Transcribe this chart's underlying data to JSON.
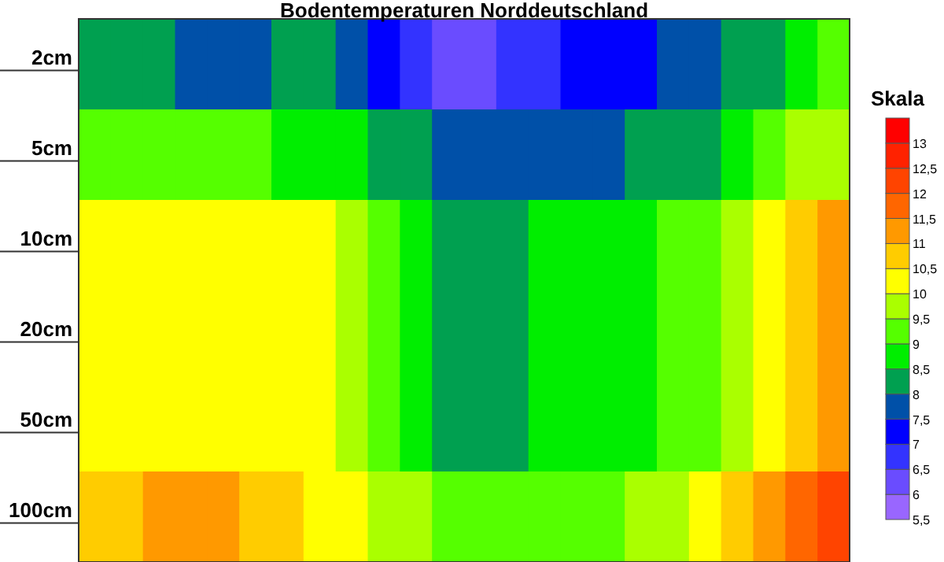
{
  "chart_data": {
    "type": "heatmap",
    "title": "Bodentemperaturen Norddeutschland",
    "clabel": "Skala",
    "categories": [
      null,
      null,
      null,
      null,
      null,
      null,
      null,
      null,
      null,
      null,
      null,
      null,
      null,
      null,
      null,
      null,
      null,
      null,
      null,
      null,
      null,
      null,
      null,
      null
    ],
    "y_categories": [
      "2cm",
      "5cm",
      "10cm",
      "20cm",
      "50cm",
      "100cm"
    ],
    "cells": [
      [
        8.25,
        8.25,
        8.25,
        7.75,
        7.75,
        7.75,
        8.25,
        8.25,
        7.75,
        7.25,
        6.75,
        6.25,
        6.25,
        6.75,
        6.75,
        7.25,
        7.25,
        7.25,
        7.75,
        7.75,
        8.25,
        8.25,
        8.75,
        9.25
      ],
      [
        9.25,
        9.25,
        9.25,
        9.25,
        9.25,
        9.25,
        8.75,
        8.75,
        8.75,
        8.25,
        8.25,
        7.75,
        7.75,
        7.75,
        7.75,
        7.75,
        7.75,
        8.25,
        8.25,
        8.25,
        8.75,
        9.25,
        9.75,
        9.75
      ],
      [
        10.25,
        10.25,
        10.25,
        10.25,
        10.25,
        10.25,
        10.25,
        10.25,
        9.75,
        9.25,
        8.75,
        8.25,
        8.25,
        8.25,
        8.75,
        8.75,
        8.75,
        8.75,
        9.25,
        9.25,
        9.75,
        10.25,
        10.75,
        11.25
      ],
      [
        10.25,
        10.25,
        10.25,
        10.25,
        10.25,
        10.25,
        10.25,
        10.25,
        9.75,
        9.25,
        8.75,
        8.25,
        8.25,
        8.25,
        8.75,
        8.75,
        8.75,
        8.75,
        9.25,
        9.25,
        9.75,
        10.25,
        10.75,
        11.25
      ],
      [
        10.25,
        10.25,
        10.25,
        10.25,
        10.25,
        10.25,
        10.25,
        10.25,
        9.75,
        9.25,
        8.75,
        8.25,
        8.25,
        8.25,
        8.75,
        8.75,
        8.75,
        8.75,
        9.25,
        9.25,
        9.75,
        10.25,
        10.75,
        11.25
      ],
      [
        10.75,
        10.75,
        11.25,
        11.25,
        11.25,
        10.75,
        10.75,
        10.25,
        10.25,
        9.75,
        9.75,
        9.25,
        9.25,
        9.25,
        9.25,
        9.25,
        9.25,
        9.75,
        9.75,
        10.25,
        10.75,
        11.25,
        11.75,
        12.25
      ]
    ],
    "clim": [
      5.5,
      13.5
    ],
    "cticks": [
      {
        "value": 5.5,
        "label": "5,5"
      },
      6,
      {
        "value": 6.5,
        "label": "6,5"
      },
      7,
      {
        "value": 7.5,
        "label": "7,5"
      },
      8,
      {
        "value": 8.5,
        "label": "8,5"
      },
      9,
      {
        "value": 9.5,
        "label": "9,5"
      },
      10,
      {
        "value": 10.5,
        "label": "10,5"
      },
      11,
      {
        "value": 11.5,
        "label": "11,5"
      },
      12,
      {
        "value": 12.5,
        "label": "12,5"
      },
      13
    ]
  }
}
